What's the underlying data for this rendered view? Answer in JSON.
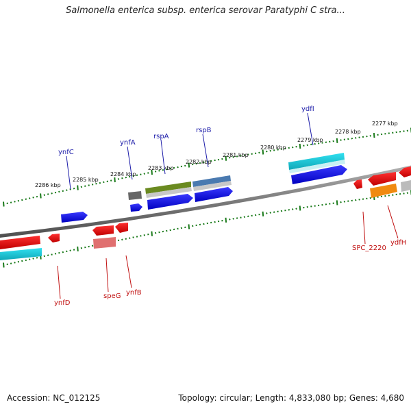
{
  "header": {
    "title": "Salmonella enterica subsp. enterica serovar Paratyphi C stra..."
  },
  "footer": {
    "accession": "Accession: NC_012125",
    "stats": "Topology: circular; Length: 4,833,080 bp; Genes: 4,680"
  },
  "map": {
    "tick_labels": [
      "2286 kbp",
      "2285 kbp",
      "2284 kbp",
      "2283 kbp",
      "2282 kbp",
      "2281 kbp",
      "2280 kbp",
      "2279 kbp",
      "2278 kbp",
      "2277 kbp"
    ],
    "genes_upper": [
      "ynfC",
      "ynfA",
      "rspA",
      "rspB",
      "ydfI"
    ],
    "genes_lower": [
      "ynfD",
      "speG",
      "ynfB",
      "SPC_2220",
      "ydfH"
    ]
  },
  "colors": {
    "forward": "#1010e0",
    "reverse": "#e01010",
    "cyan": "#10c0d0",
    "olive": "#6a8a20",
    "steel": "#4a7ab0",
    "gray": "#707070",
    "pink": "#e07070",
    "orange": "#f08a10",
    "tick": "#1a7a1a",
    "backbone": "#808080"
  }
}
